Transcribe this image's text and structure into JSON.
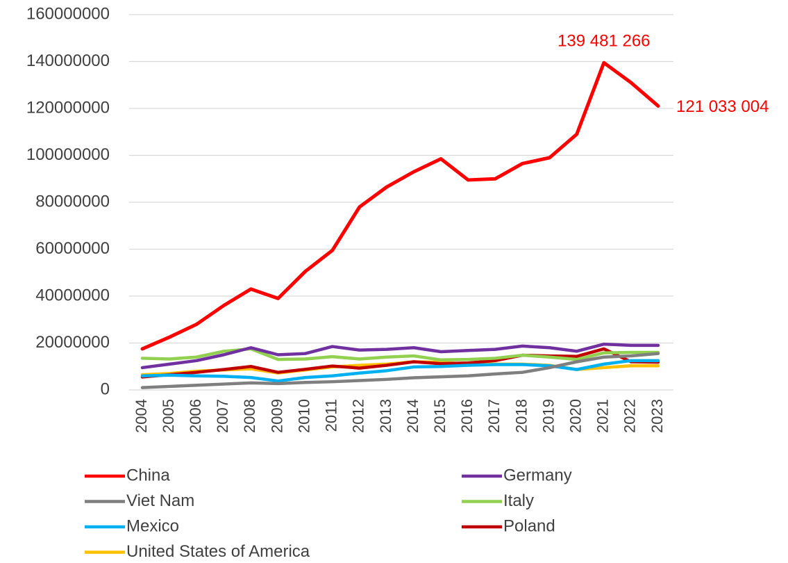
{
  "chart_data": {
    "type": "line",
    "categories": [
      "2004",
      "2005",
      "2006",
      "2007",
      "2008",
      "2009",
      "2010",
      "2011",
      "2012",
      "2013",
      "2014",
      "2015",
      "2016",
      "2017",
      "2018",
      "2019",
      "2020",
      "2021",
      "2022",
      "2023"
    ],
    "series": [
      {
        "name": "China",
        "color": "#ff0000",
        "values": [
          17500000,
          22500000,
          28000000,
          36000000,
          43000000,
          39000000,
          50500000,
          59500000,
          78000000,
          86500000,
          93000000,
          98500000,
          89500000,
          90000000,
          96500000,
          99000000,
          109000000,
          139481266,
          131000000,
          121033004
        ],
        "value_labels": [
          null,
          null,
          null,
          null,
          null,
          null,
          null,
          null,
          null,
          null,
          null,
          null,
          null,
          null,
          null,
          null,
          null,
          "139 481 266",
          null,
          "121 033 004"
        ]
      },
      {
        "name": "Germany",
        "color": "#7030a0",
        "values": [
          9500000,
          11000000,
          12500000,
          15000000,
          18000000,
          15000000,
          15500000,
          18500000,
          17000000,
          17300000,
          18000000,
          16300000,
          16800000,
          17300000,
          18700000,
          18000000,
          16500000,
          19500000,
          19000000,
          19000000
        ]
      },
      {
        "name": "Viet Nam",
        "color": "#7f7f7f",
        "values": [
          1000000,
          1500000,
          2000000,
          2500000,
          3000000,
          2700000,
          3200000,
          3500000,
          4000000,
          4500000,
          5200000,
          5600000,
          6000000,
          6800000,
          7500000,
          9500000,
          12000000,
          14000000,
          14500000,
          15500000
        ]
      },
      {
        "name": "Italy",
        "color": "#92d050",
        "values": [
          13500000,
          13200000,
          14000000,
          16500000,
          17500000,
          13000000,
          13200000,
          14200000,
          13200000,
          14000000,
          14500000,
          12800000,
          13000000,
          13500000,
          14800000,
          14000000,
          13000000,
          15800000,
          16000000,
          16000000
        ]
      },
      {
        "name": "Mexico",
        "color": "#00b0f0",
        "values": [
          6000000,
          6300000,
          6000000,
          5800000,
          5300000,
          3800000,
          5300000,
          6000000,
          7200000,
          8200000,
          9800000,
          10000000,
          10500000,
          10800000,
          10800000,
          10300000,
          8700000,
          11000000,
          12500000,
          12500000
        ]
      },
      {
        "name": "Poland",
        "color": "#c00000",
        "values": [
          5500000,
          6500000,
          7500000,
          8700000,
          10000000,
          7500000,
          8800000,
          10200000,
          9300000,
          10500000,
          12000000,
          11200000,
          11500000,
          12500000,
          14800000,
          14500000,
          14300000,
          17500000,
          12000000,
          11800000
        ]
      },
      {
        "name": "United States of America",
        "color": "#ffc000",
        "values": [
          6500000,
          7000000,
          8000000,
          8500000,
          9000000,
          7200000,
          8500000,
          9800000,
          10500000,
          11000000,
          12000000,
          11800000,
          11000000,
          11000000,
          11000000,
          10500000,
          8700000,
          9500000,
          10300000,
          10300000
        ]
      }
    ],
    "ylim": [
      0,
      160000000
    ],
    "yticks": [
      0,
      20000000,
      40000000,
      60000000,
      80000000,
      100000000,
      120000000,
      140000000,
      160000000
    ],
    "grid": true
  }
}
